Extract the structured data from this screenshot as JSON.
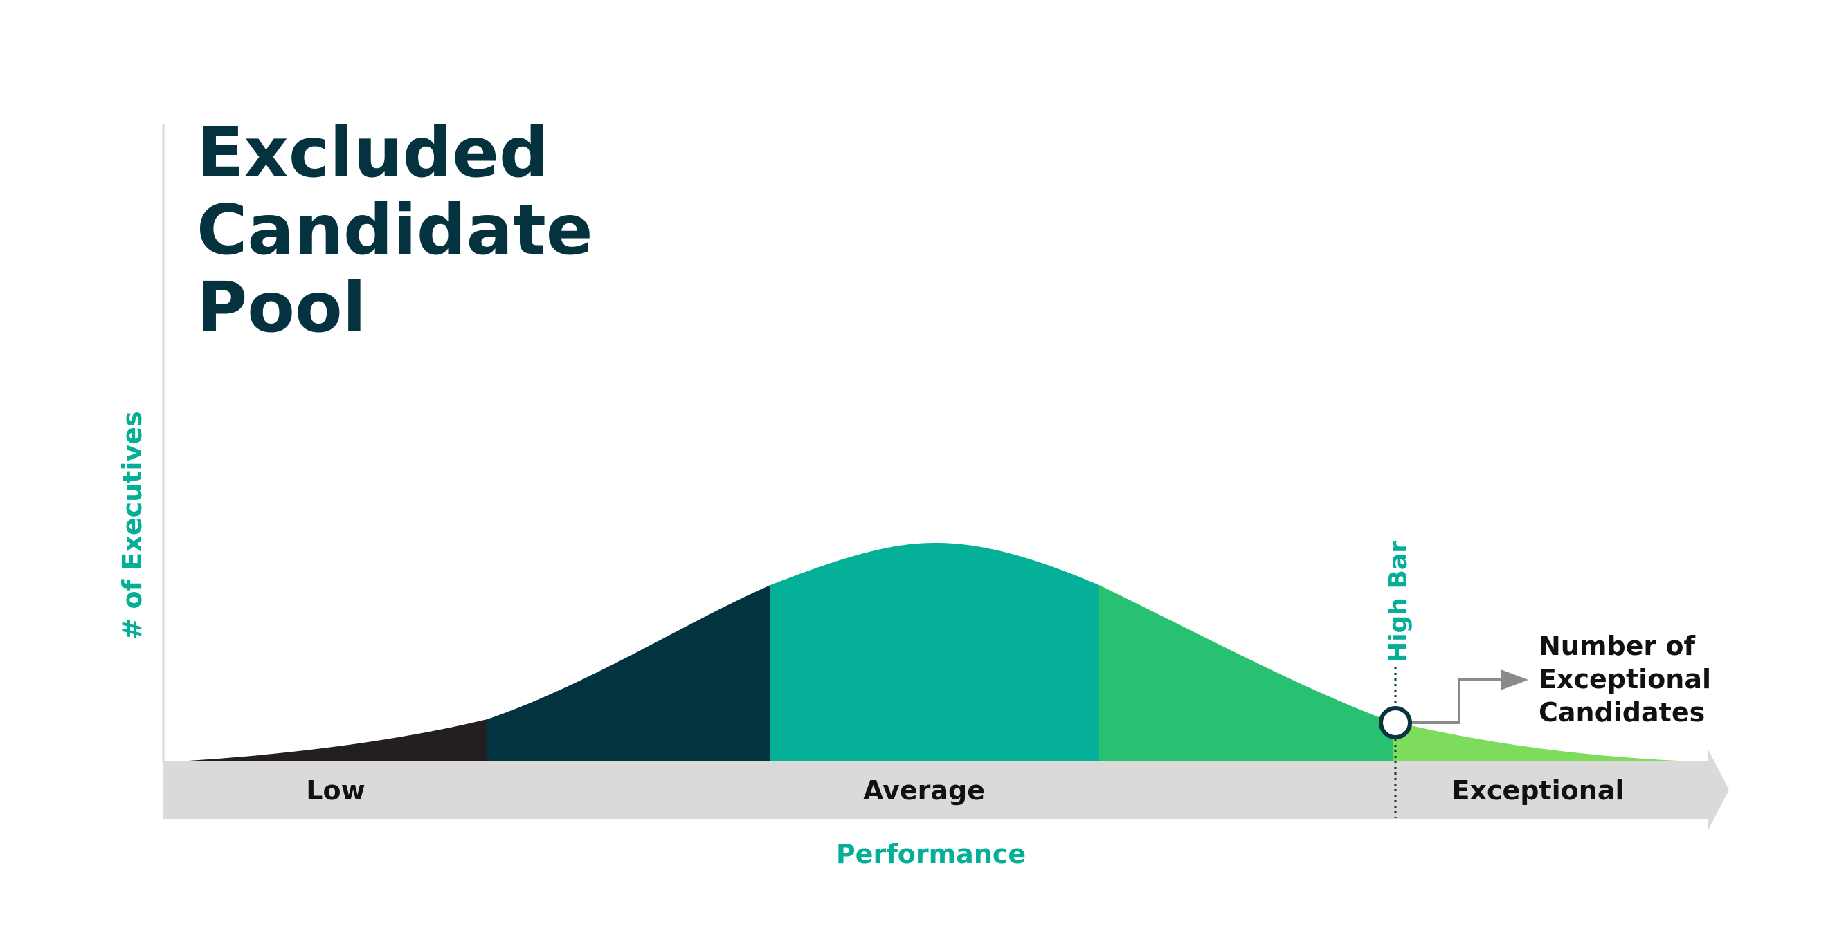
{
  "title": {
    "lines": [
      "Excluded",
      "Candidate",
      "Pool"
    ]
  },
  "axes": {
    "y_label": "# of Executives",
    "x_label": "Performance"
  },
  "bands": [
    {
      "label": "Low",
      "color": "#231f20"
    },
    {
      "label": "",
      "color": "#02333f"
    },
    {
      "label": "Average",
      "color": "#05b099"
    },
    {
      "label": "",
      "color": "#28c171"
    },
    {
      "label": "Exceptional",
      "color": "#7ddc5c"
    }
  ],
  "performance_bar": {
    "labels": [
      "Low",
      "Average",
      "Exceptional"
    ],
    "color": "#dbdad9"
  },
  "threshold": {
    "label": "High Bar",
    "color": "#05ae96"
  },
  "callout": {
    "lines": [
      "Number of",
      "Exceptional",
      "Candidates"
    ],
    "arrow_color": "#8a8a8a"
  },
  "colors": {
    "title": "#04323f",
    "accent": "#05ae96",
    "text": "#111111"
  }
}
